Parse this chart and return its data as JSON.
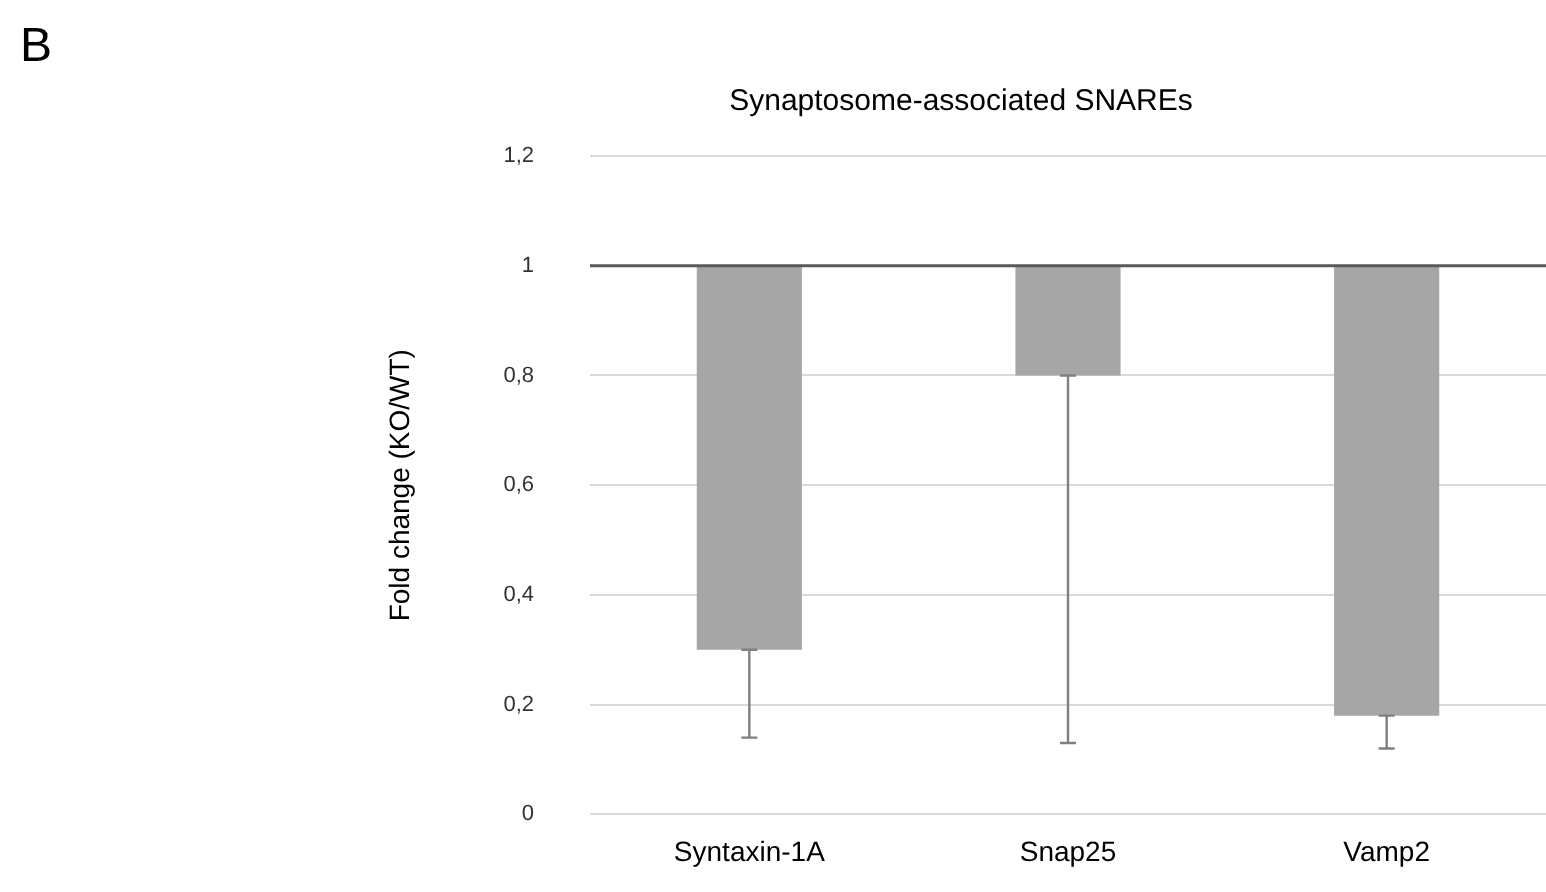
{
  "chart_data": {
    "type": "bar",
    "title": "Synaptosome-associated SNAREs",
    "ylabel": "Fold change (KO/WT)",
    "annotations": [
      "B"
    ],
    "categories": [
      "Syntaxin-1A",
      "Snap25",
      "Vamp2"
    ],
    "base": [
      1,
      1,
      1
    ],
    "values": [
      -0.7,
      -0.2,
      -0.82
    ],
    "errors": [
      [
        0.14,
        0.3
      ],
      [
        0.13,
        0.8
      ],
      [
        0.12,
        0.18
      ]
    ],
    "color": "#a6a6a6",
    "ylim": [
      0,
      1.2
    ],
    "yticks": [
      {
        "value": 0,
        "label": "0"
      },
      {
        "value": 0.2,
        "label": "0,2"
      },
      {
        "value": 0.4,
        "label": "0,4"
      },
      {
        "value": 0.6,
        "label": "0,6"
      },
      {
        "value": 0.8,
        "label": "0,8"
      },
      {
        "value": 1,
        "label": "1"
      },
      {
        "value": 1.2,
        "label": "1,2"
      }
    ],
    "ref_lines": [
      {
        "axis": "y",
        "value": 1,
        "color": "#595959"
      }
    ],
    "grid": "y",
    "legend": false
  }
}
